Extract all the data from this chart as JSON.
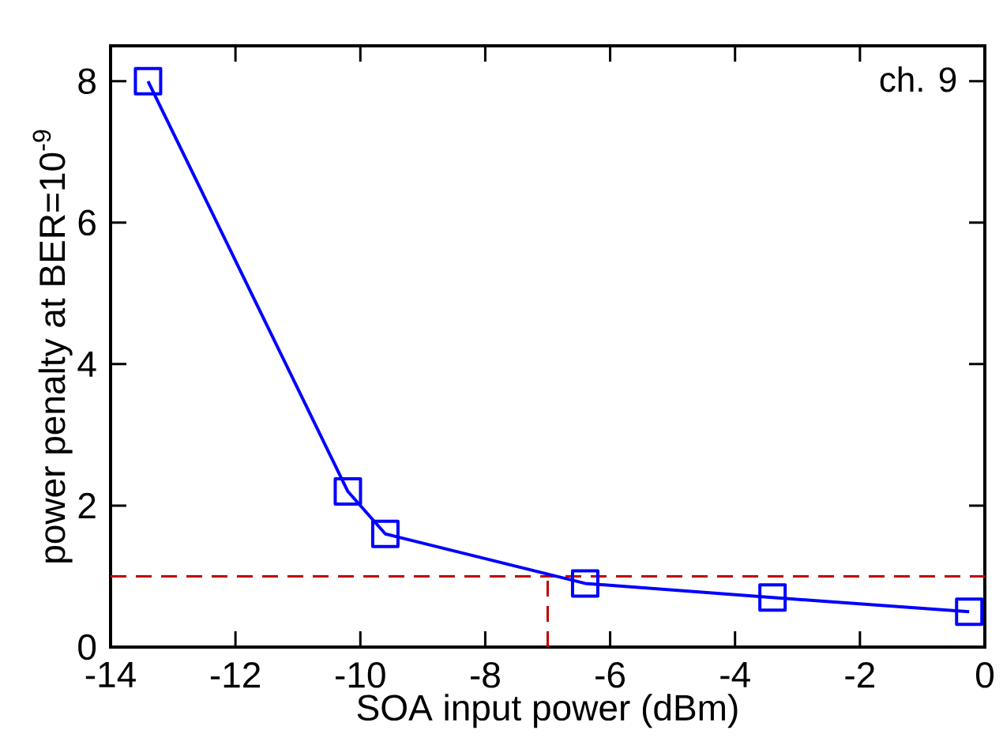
{
  "chart_data": {
    "type": "line",
    "xlabel": "SOA input power (dBm)",
    "ylabel": "power penalty at BER=10$^{-9}$",
    "annotations": [
      "ch. 9"
    ],
    "xlim": [
      -14,
      0
    ],
    "ylim": [
      0,
      8.5
    ],
    "xticks": [
      -14,
      -12,
      -10,
      -8,
      -6,
      -4,
      -2,
      0
    ],
    "yticks": [
      0,
      2,
      4,
      6,
      8
    ],
    "series": [
      {
        "color": "#0000ff",
        "marker": "square",
        "line_style": "solid",
        "x": [
          -13.4,
          -10.2,
          -9.6,
          -6.4,
          -3.4,
          -0.25
        ],
        "values": [
          8.0,
          2.2,
          1.6,
          0.9,
          0.7,
          0.5
        ]
      },
      {
        "type": "line",
        "color": "#c00000",
        "marker": "none",
        "line_style": "dashed",
        "x": [
          -7,
          -7
        ],
        "values": [
          0,
          1
        ]
      }
    ],
    "ref_lines": [
      {
        "axis": "y",
        "value": 1,
        "color": "#c00000",
        "line_style": "dashed"
      }
    ]
  }
}
